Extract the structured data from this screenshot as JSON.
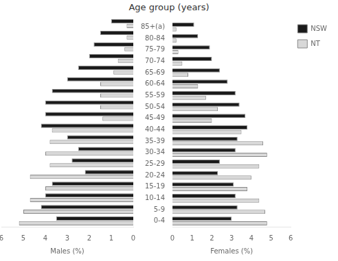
{
  "chart_data": [
    {
      "type": "bar",
      "orientation": "horizontal",
      "title": "Age group (years)",
      "categories": [
        "0-4",
        "5-9",
        "10-14",
        "15-19",
        "20-24",
        "25-29",
        "30-34",
        "35-39",
        "40-44",
        "45-49",
        "50-54",
        "55-59",
        "60-64",
        "65-69",
        "70-74",
        "75-79",
        "80-84",
        "85+(a)"
      ],
      "series": [
        {
          "name": "NSW",
          "color": "#1a1a1a",
          "values": [
            3.5,
            4.2,
            4.0,
            3.7,
            2.2,
            2.8,
            2.5,
            3.0,
            4.2,
            4.0,
            4.0,
            3.7,
            3.0,
            2.5,
            2.0,
            1.8,
            1.5,
            1.0
          ]
        },
        {
          "name": "NT",
          "color": "#d8d8d8",
          "values": [
            5.2,
            5.0,
            4.7,
            4.0,
            4.7,
            3.8,
            4.0,
            3.8,
            3.7,
            1.4,
            1.5,
            1.5,
            1.5,
            0.9,
            0.7,
            0.4,
            0.3,
            0.3
          ]
        }
      ],
      "xlim": [
        6,
        0
      ],
      "xticks": [
        0,
        1,
        2,
        3,
        4,
        5,
        6
      ],
      "xlabel": "Males (%)",
      "grid": false,
      "tick_labels": "x"
    },
    {
      "type": "bar",
      "orientation": "horizontal",
      "categories": [
        "0-4",
        "5-9",
        "10-14",
        "15-19",
        "20-24",
        "25-29",
        "30-34",
        "35-39",
        "40-44",
        "45-49",
        "50-54",
        "55-59",
        "60-64",
        "65-69",
        "70-74",
        "75-79",
        "80-84",
        "85+(a)"
      ],
      "series": [
        {
          "name": "NSW",
          "color": "#1a1a1a",
          "values": [
            3.0,
            3.3,
            3.2,
            3.1,
            2.3,
            2.4,
            3.2,
            3.3,
            3.8,
            3.7,
            3.4,
            3.2,
            2.8,
            2.4,
            2.0,
            1.9,
            1.3,
            1.1
          ]
        },
        {
          "name": "NT",
          "color": "#d8d8d8",
          "values": [
            4.8,
            4.7,
            4.4,
            3.8,
            4.0,
            4.4,
            4.8,
            4.6,
            3.5,
            2.0,
            2.3,
            1.7,
            1.3,
            0.8,
            0.5,
            0.3,
            0.2,
            0.2
          ]
        }
      ],
      "xlim": [
        0,
        6
      ],
      "xticks": [
        0,
        1,
        2,
        3,
        4,
        5,
        6
      ],
      "xlabel": "Females (%)",
      "grid": false,
      "legend": "upper right"
    }
  ]
}
